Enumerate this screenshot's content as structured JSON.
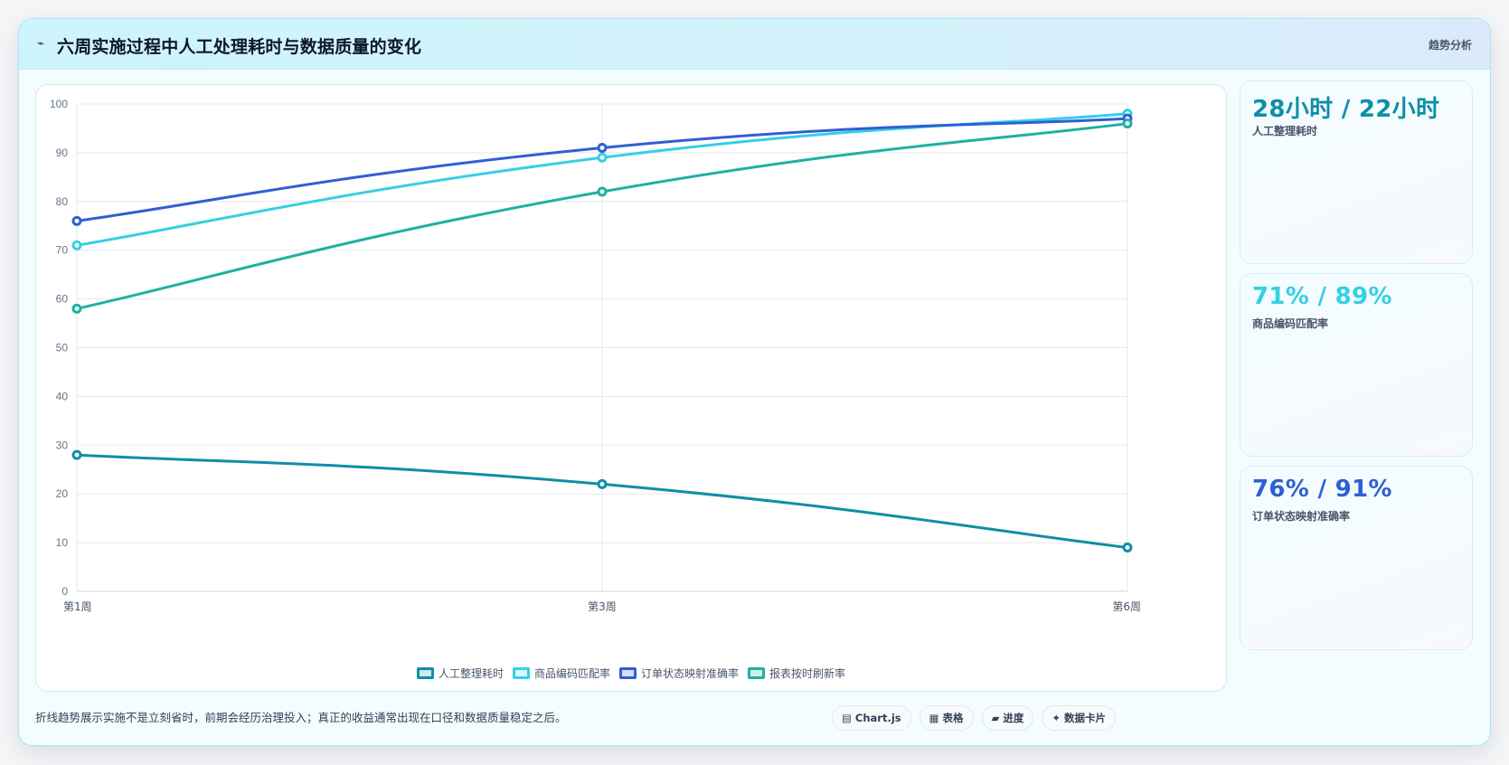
{
  "header": {
    "icon": "trend-line-icon",
    "title": "六周实施过程中人工处理耗时与数据质量的变化",
    "tag": "趋势分析"
  },
  "chart_data": {
    "type": "line",
    "categories": [
      "第1周",
      "第3周",
      "第6周"
    ],
    "ylim": [
      0,
      100
    ],
    "yticks": [
      0,
      10,
      20,
      30,
      40,
      50,
      60,
      70,
      80,
      90,
      100
    ],
    "grid": true,
    "legend_position": "bottom",
    "series": [
      {
        "name": "人工整理耗时",
        "values": [
          28,
          22,
          9
        ],
        "color": "#0e8fa6"
      },
      {
        "name": "商品编码匹配率",
        "values": [
          71,
          89,
          98
        ],
        "color": "#34d0e4"
      },
      {
        "name": "订单状态映射准确率",
        "values": [
          76,
          91,
          97
        ],
        "color": "#2f5fd4"
      },
      {
        "name": "报表按时刷新率",
        "values": [
          58,
          82,
          96
        ],
        "color": "#1fb0a2"
      }
    ]
  },
  "stats": [
    {
      "value": "28小时 / 22小时",
      "label": "人工整理耗时",
      "color": "#0e8fa6"
    },
    {
      "value": "71% / 89%",
      "label": "商品编码匹配率",
      "color": "#34d0e4"
    },
    {
      "value": "76% / 91%",
      "label": "订单状态映射准确率",
      "color": "#2f5fd4"
    }
  ],
  "footer": {
    "note": "折线趋势展示实施不是立刻省时，前期会经历治理投入；真正的收益通常出现在口径和数据质量稳定之后。",
    "tabs": [
      {
        "icon": "▤",
        "label": "Chart.js"
      },
      {
        "icon": "▦",
        "label": "表格"
      },
      {
        "icon": "▰",
        "label": "进度"
      },
      {
        "icon": "✦",
        "label": "数据卡片"
      }
    ]
  }
}
